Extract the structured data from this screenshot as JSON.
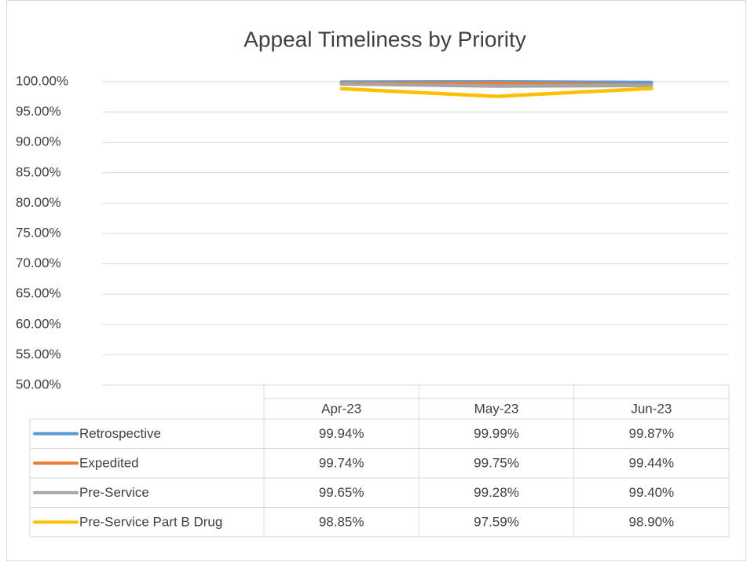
{
  "chart_data": {
    "type": "line",
    "title": "Appeal Timeliness by Priority",
    "categories": [
      "Apr-23",
      "May-23",
      "Jun-23"
    ],
    "series": [
      {
        "name": "Retrospective",
        "color": "#5b9bd5",
        "values": [
          99.94,
          99.99,
          99.87
        ],
        "value_labels": [
          "99.94%",
          "99.99%",
          "99.87%"
        ]
      },
      {
        "name": "Expedited",
        "color": "#ed7d31",
        "values": [
          99.74,
          99.75,
          99.44
        ],
        "value_labels": [
          "99.74%",
          "99.75%",
          "99.44%"
        ]
      },
      {
        "name": "Pre-Service",
        "color": "#a5a5a5",
        "values": [
          99.65,
          99.28,
          99.4
        ],
        "value_labels": [
          "99.65%",
          "99.28%",
          "99.40%"
        ]
      },
      {
        "name": "Pre-Service Part B Drug",
        "color": "#ffc000",
        "values": [
          98.85,
          97.59,
          98.9
        ],
        "value_labels": [
          "98.85%",
          "97.59%",
          "98.90%"
        ]
      }
    ],
    "ylim": [
      50,
      100
    ],
    "yticks": [
      {
        "value": 50,
        "label": "50.00%"
      },
      {
        "value": 55,
        "label": "55.00%"
      },
      {
        "value": 60,
        "label": "60.00%"
      },
      {
        "value": 65,
        "label": "65.00%"
      },
      {
        "value": 70,
        "label": "70.00%"
      },
      {
        "value": 75,
        "label": "75.00%"
      },
      {
        "value": 80,
        "label": "80.00%"
      },
      {
        "value": 85,
        "label": "85.00%"
      },
      {
        "value": 90,
        "label": "90.00%"
      },
      {
        "value": 95,
        "label": "95.00%"
      },
      {
        "value": 100,
        "label": "100.00%"
      }
    ],
    "grid": true
  }
}
